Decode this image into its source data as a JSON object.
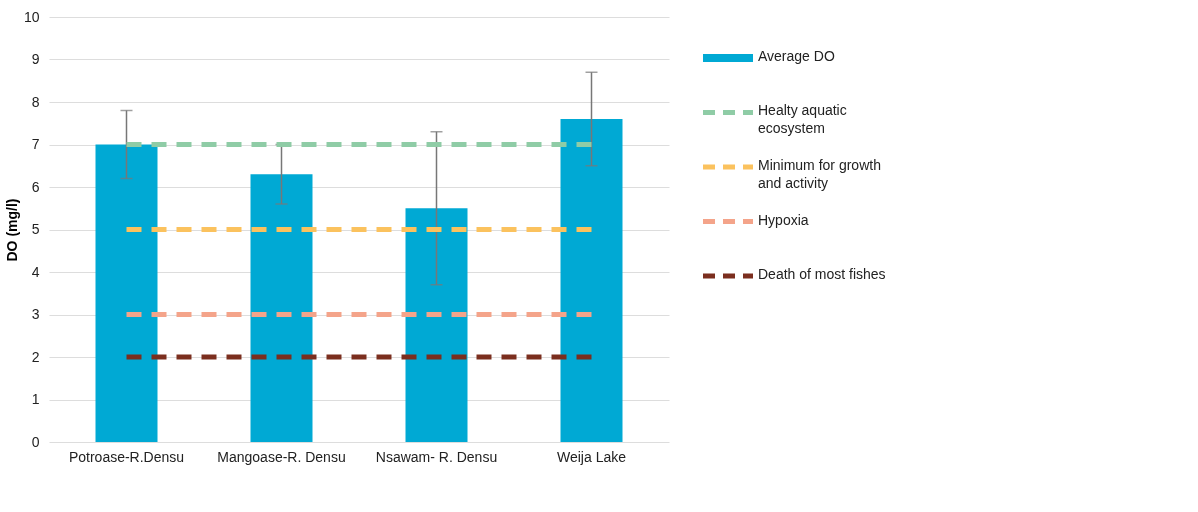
{
  "chart_data": {
    "type": "bar",
    "ylabel": "DO (mg/l)",
    "categories": [
      "Potroase-R.Densu",
      "Mangoase-R. Densu",
      "Nsawam- R. Densu",
      "Weija Lake"
    ],
    "series": [
      {
        "name": "Average DO",
        "color": "#00a9d4",
        "values": [
          7.0,
          6.3,
          5.5,
          7.6
        ],
        "errors": [
          0.8,
          0.7,
          1.8,
          1.1
        ]
      },
      {
        "name": "Healty aquatic ecosystem",
        "type": "line",
        "line_style": "dashed",
        "color": "#8fcca6",
        "values": [
          7,
          7,
          7,
          7
        ]
      },
      {
        "name": "Minimum for growth and activity",
        "type": "line",
        "line_style": "dashed",
        "color": "#fbc25e",
        "values": [
          5,
          5,
          5,
          5
        ]
      },
      {
        "name": "Hypoxia",
        "type": "line",
        "line_style": "dashed",
        "color": "#f4a48a",
        "values": [
          3,
          3,
          3,
          3
        ]
      },
      {
        "name": "Death of most fishes",
        "type": "line",
        "line_style": "dashed",
        "color": "#7b2e1e",
        "values": [
          2,
          2,
          2,
          2
        ]
      }
    ],
    "ylim": [
      0,
      10
    ],
    "yticks": [
      0,
      1,
      2,
      3,
      4,
      5,
      6,
      7,
      8,
      9,
      10
    ],
    "grid": "y",
    "legend": "right"
  }
}
